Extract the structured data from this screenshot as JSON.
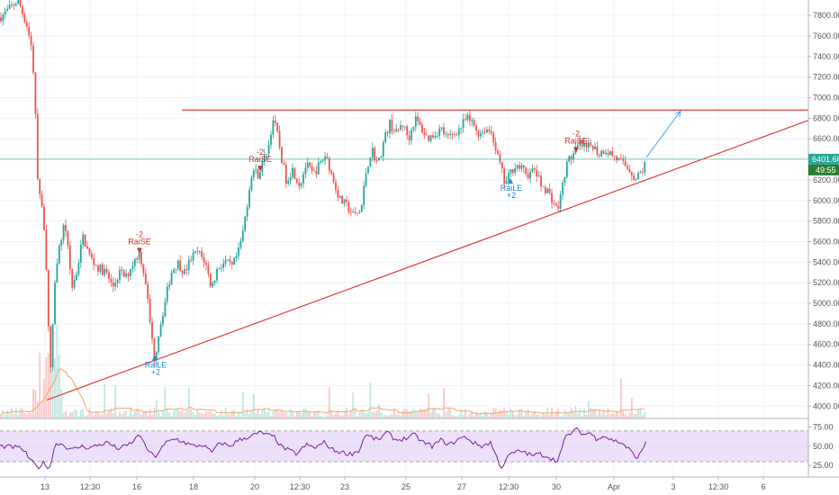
{
  "chart_data": {
    "type": "candlestick",
    "price_axis": {
      "min": 3880,
      "max": 7950,
      "ticks": [
        4000,
        4200,
        4400,
        4600,
        4800,
        5000,
        5200,
        5400,
        5600,
        5800,
        6000,
        6200,
        6400,
        6600,
        6800,
        7000,
        7200,
        7400,
        7600,
        7800
      ],
      "tick_labels": [
        "4000.00",
        "4200.00",
        "4400.00",
        "4600.00",
        "4800.00",
        "5000.00",
        "5200.00",
        "5400.00",
        "5600.00",
        "5800.00",
        "6000.00",
        "6200.00",
        "6400.00",
        "6600.00",
        "6800.00",
        "7000.00",
        "7200.00",
        "7400.00",
        "7600.00",
        "7800.00"
      ]
    },
    "time_axis": {
      "labels": [
        "13",
        "12:30",
        "16",
        "18",
        "20",
        "12:30",
        "23",
        "25",
        "27",
        "12:30",
        "30",
        "Apr",
        "3",
        "12:30",
        "6"
      ]
    },
    "last_price": {
      "value": 6401.68,
      "label": "6401.68",
      "countdown": "49:55"
    },
    "price_path": [
      [
        0,
        7780
      ],
      [
        10,
        7860
      ],
      [
        20,
        7950
      ],
      [
        30,
        7700
      ],
      [
        36,
        7450
      ],
      [
        39,
        6900
      ],
      [
        42,
        6200
      ],
      [
        45,
        6000
      ],
      [
        50,
        5700
      ],
      [
        53,
        4950
      ],
      [
        56,
        4300
      ],
      [
        60,
        5100
      ],
      [
        65,
        5500
      ],
      [
        72,
        5800
      ],
      [
        80,
        5150
      ],
      [
        85,
        5300
      ],
      [
        92,
        5650
      ],
      [
        100,
        5450
      ],
      [
        108,
        5350
      ],
      [
        118,
        5300
      ],
      [
        125,
        5150
      ],
      [
        133,
        5300
      ],
      [
        140,
        5250
      ],
      [
        148,
        5400
      ],
      [
        155,
        5500
      ],
      [
        162,
        5200
      ],
      [
        168,
        4700
      ],
      [
        172,
        4450
      ],
      [
        176,
        4700
      ],
      [
        183,
        5000
      ],
      [
        190,
        5300
      ],
      [
        197,
        5400
      ],
      [
        205,
        5300
      ],
      [
        213,
        5450
      ],
      [
        220,
        5500
      ],
      [
        228,
        5400
      ],
      [
        235,
        5150
      ],
      [
        242,
        5350
      ],
      [
        250,
        5400
      ],
      [
        258,
        5350
      ],
      [
        265,
        5500
      ],
      [
        270,
        5700
      ],
      [
        275,
        6000
      ],
      [
        280,
        6300
      ],
      [
        287,
        6250
      ],
      [
        293,
        6400
      ],
      [
        299,
        6550
      ],
      [
        303,
        6800
      ],
      [
        308,
        6650
      ],
      [
        313,
        6400
      ],
      [
        318,
        6200
      ],
      [
        325,
        6300
      ],
      [
        333,
        6150
      ],
      [
        340,
        6350
      ],
      [
        348,
        6250
      ],
      [
        355,
        6350
      ],
      [
        362,
        6450
      ],
      [
        370,
        6200
      ],
      [
        378,
        6000
      ],
      [
        385,
        5950
      ],
      [
        393,
        5850
      ],
      [
        401,
        5900
      ],
      [
        407,
        6300
      ],
      [
        413,
        6500
      ],
      [
        420,
        6350
      ],
      [
        427,
        6600
      ],
      [
        433,
        6750
      ],
      [
        440,
        6650
      ],
      [
        447,
        6750
      ],
      [
        454,
        6600
      ],
      [
        461,
        6800
      ],
      [
        468,
        6700
      ],
      [
        475,
        6600
      ],
      [
        483,
        6650
      ],
      [
        490,
        6700
      ],
      [
        497,
        6600
      ],
      [
        504,
        6650
      ],
      [
        511,
        6700
      ],
      [
        518,
        6800
      ],
      [
        525,
        6750
      ],
      [
        532,
        6650
      ],
      [
        540,
        6700
      ],
      [
        547,
        6650
      ],
      [
        552,
        6450
      ],
      [
        557,
        6300
      ],
      [
        561,
        6150
      ],
      [
        566,
        6250
      ],
      [
        572,
        6350
      ],
      [
        580,
        6300
      ],
      [
        587,
        6250
      ],
      [
        594,
        6300
      ],
      [
        601,
        6150
      ],
      [
        608,
        6100
      ],
      [
        614,
        6000
      ],
      [
        619,
        5900
      ],
      [
        623,
        6050
      ],
      [
        628,
        6300
      ],
      [
        632,
        6400
      ],
      [
        637,
        6450
      ],
      [
        644,
        6550
      ],
      [
        651,
        6500
      ],
      [
        658,
        6550
      ],
      [
        665,
        6450
      ],
      [
        672,
        6500
      ],
      [
        679,
        6450
      ],
      [
        686,
        6400
      ],
      [
        693,
        6350
      ],
      [
        700,
        6300
      ],
      [
        706,
        6200
      ],
      [
        710,
        6250
      ],
      [
        714,
        6300
      ],
      [
        718,
        6380
      ]
    ],
    "annotations": {
      "resistance_line": {
        "x1": 202,
        "x2": 898,
        "price": 6880
      },
      "trend_line": {
        "x1": 52,
        "x2": 898,
        "price1": 4060,
        "price2": 6780
      },
      "projection_arrow": {
        "x1": 718,
        "price1": 6420,
        "x2": 756,
        "price2": 6870
      },
      "signals": [
        {
          "type": "sell",
          "label": "RaiSE",
          "value": "-2",
          "x": 155,
          "price": 5450
        },
        {
          "type": "buy",
          "label": "RaiLE",
          "value": "+2",
          "x": 172,
          "price": 4480
        },
        {
          "type": "sell",
          "label": "RaiSE",
          "value": "-2",
          "x": 289,
          "price": 6250
        },
        {
          "type": "buy",
          "label": "RaiLE",
          "value": "+2",
          "x": 567,
          "price": 6200
        },
        {
          "type": "sell",
          "label": "RaiSE",
          "value": "-2",
          "x": 640,
          "price": 6430
        }
      ]
    },
    "rsi": {
      "min": 10,
      "max": 85,
      "band_upper": 70,
      "band_lower": 30,
      "mid": 50,
      "tick_labels": [
        "75.00",
        "50.00",
        "25.00"
      ],
      "ticks": [
        75,
        50,
        25
      ],
      "path": [
        [
          0,
          50
        ],
        [
          15,
          49
        ],
        [
          25,
          47
        ],
        [
          35,
          30
        ],
        [
          42,
          22
        ],
        [
          48,
          28
        ],
        [
          55,
          22
        ],
        [
          58,
          35
        ],
        [
          62,
          55
        ],
        [
          70,
          52
        ],
        [
          80,
          45
        ],
        [
          90,
          50
        ],
        [
          100,
          48
        ],
        [
          110,
          52
        ],
        [
          120,
          55
        ],
        [
          130,
          47
        ],
        [
          140,
          50
        ],
        [
          150,
          58
        ],
        [
          155,
          68
        ],
        [
          160,
          52
        ],
        [
          168,
          40
        ],
        [
          172,
          36
        ],
        [
          178,
          45
        ],
        [
          185,
          55
        ],
        [
          195,
          60
        ],
        [
          205,
          55
        ],
        [
          215,
          50
        ],
        [
          225,
          52
        ],
        [
          235,
          42
        ],
        [
          245,
          55
        ],
        [
          255,
          50
        ],
        [
          265,
          58
        ],
        [
          275,
          62
        ],
        [
          283,
          65
        ],
        [
          290,
          68
        ],
        [
          298,
          64
        ],
        [
          305,
          62
        ],
        [
          312,
          50
        ],
        [
          320,
          45
        ],
        [
          330,
          40
        ],
        [
          340,
          52
        ],
        [
          350,
          48
        ],
        [
          360,
          55
        ],
        [
          370,
          45
        ],
        [
          380,
          42
        ],
        [
          390,
          40
        ],
        [
          400,
          45
        ],
        [
          405,
          65
        ],
        [
          412,
          62
        ],
        [
          420,
          58
        ],
        [
          430,
          68
        ],
        [
          440,
          58
        ],
        [
          450,
          60
        ],
        [
          460,
          65
        ],
        [
          470,
          55
        ],
        [
          480,
          50
        ],
        [
          490,
          58
        ],
        [
          500,
          52
        ],
        [
          510,
          60
        ],
        [
          518,
          62
        ],
        [
          525,
          55
        ],
        [
          535,
          50
        ],
        [
          545,
          55
        ],
        [
          552,
          35
        ],
        [
          557,
          22
        ],
        [
          562,
          32
        ],
        [
          567,
          40
        ],
        [
          572,
          42
        ],
        [
          580,
          44
        ],
        [
          590,
          38
        ],
        [
          600,
          40
        ],
        [
          610,
          36
        ],
        [
          618,
          30
        ],
        [
          623,
          42
        ],
        [
          628,
          62
        ],
        [
          635,
          68
        ],
        [
          642,
          72
        ],
        [
          648,
          65
        ],
        [
          655,
          68
        ],
        [
          662,
          60
        ],
        [
          670,
          64
        ],
        [
          680,
          58
        ],
        [
          690,
          55
        ],
        [
          700,
          45
        ],
        [
          706,
          35
        ],
        [
          712,
          40
        ],
        [
          718,
          58
        ]
      ]
    },
    "colors": {
      "up": "#26a69a",
      "down": "#ef5350",
      "resistance": "#e53935",
      "trend": "#e53935",
      "arrow": "#42a5f5",
      "ma_volume": "#f0a96a",
      "rsi_line": "#7b1fa2",
      "rsi_band": "#ece0fb",
      "last_price_bg": "#26a69a",
      "countdown_bg": "#2e7d32"
    }
  }
}
